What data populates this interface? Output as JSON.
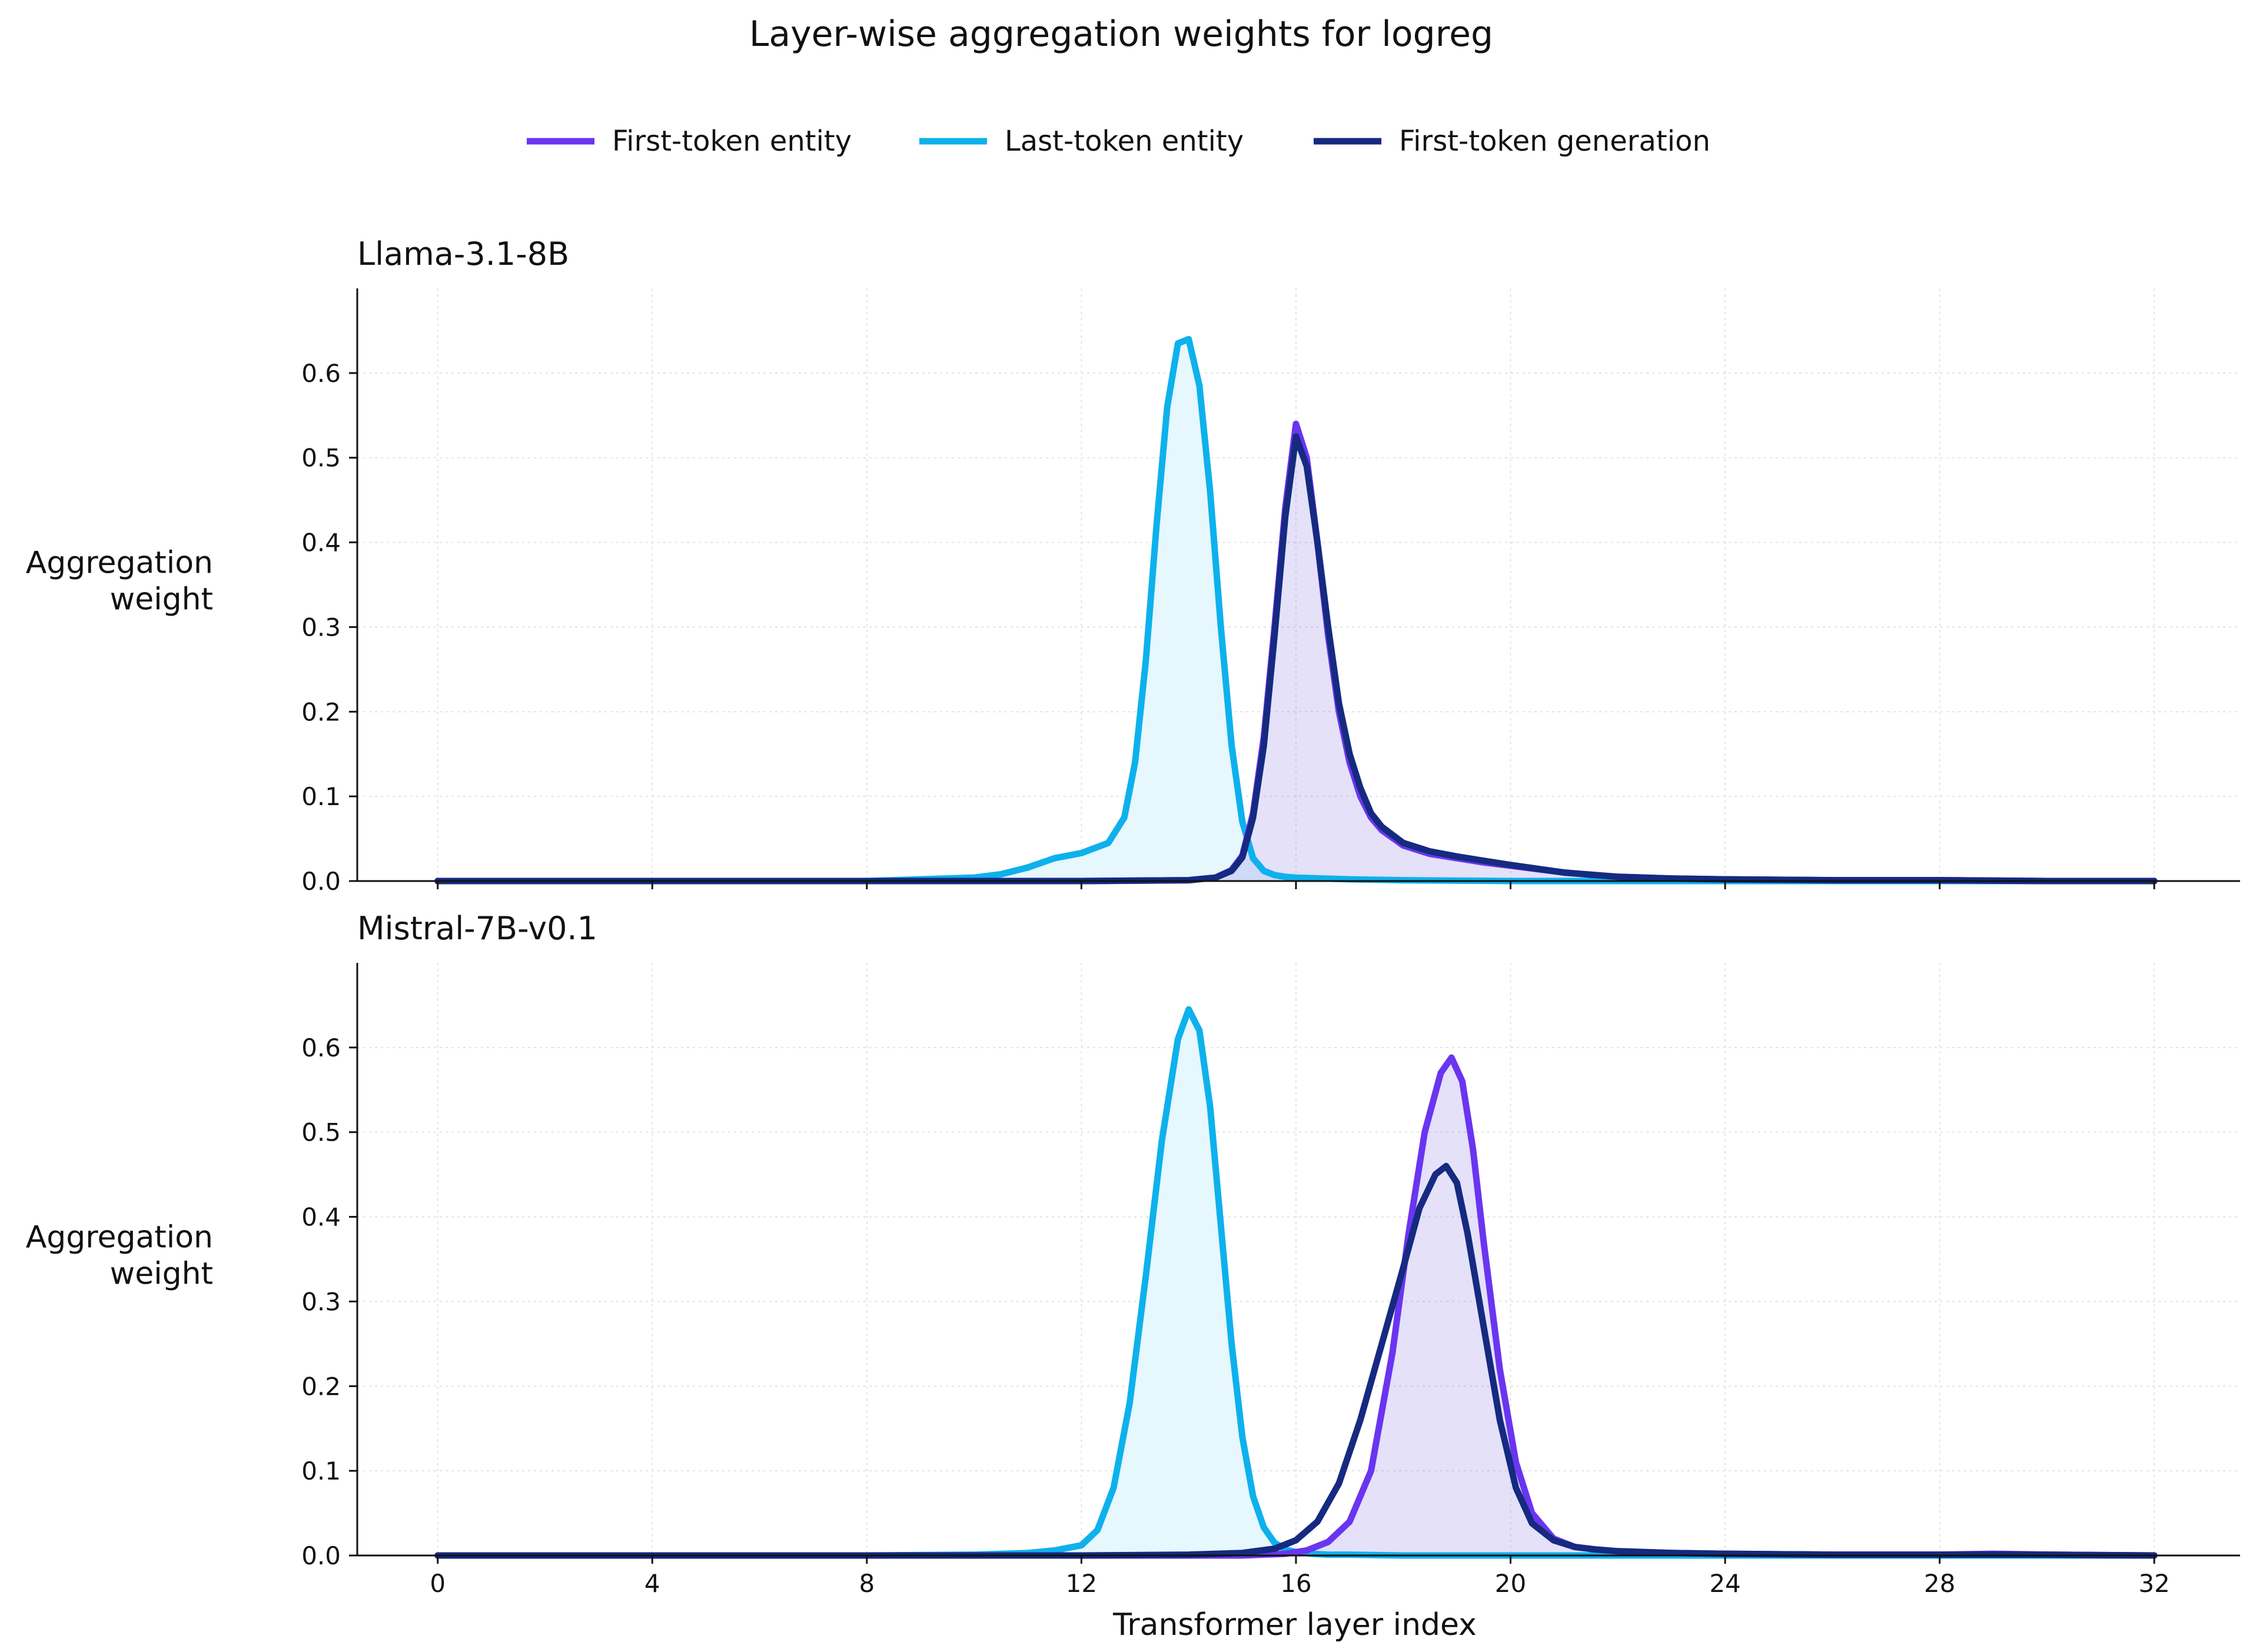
{
  "chart_data": {
    "type": "line",
    "title": "Layer-wise aggregation weights for logreg",
    "xlabel": "Transformer layer index",
    "ylabel": "Aggregation weight",
    "xlim": [
      -1.5,
      33.6
    ],
    "ylim": [
      0,
      0.7
    ],
    "xticks": [
      0,
      4,
      8,
      12,
      16,
      20,
      24,
      28,
      32
    ],
    "yticks": [
      0.0,
      0.1,
      0.2,
      0.3,
      0.4,
      0.5,
      0.6
    ],
    "ytick_labels": [
      "0.0",
      "0.1",
      "0.2",
      "0.3",
      "0.4",
      "0.5",
      "0.6"
    ],
    "grid": true,
    "legend": {
      "placement": "top-center",
      "entries": [
        {
          "name": "First-token entity",
          "color": "#6a35f0"
        },
        {
          "name": "Last-token entity",
          "color": "#0eb1ec"
        },
        {
          "name": "First-token generation",
          "color": "#152a80"
        }
      ]
    },
    "panels": [
      {
        "title": "Llama-3.1-8B",
        "series": [
          {
            "name": "Last-token entity",
            "color": "#0eb1ec",
            "fill": true,
            "x": [
              0,
              4,
              8,
              10,
              10.5,
              11,
              11.5,
              12,
              12.5,
              12.8,
              13,
              13.2,
              13.4,
              13.6,
              13.8,
              14,
              14.2,
              14.4,
              14.6,
              14.8,
              15,
              15.2,
              15.4,
              15.6,
              15.8,
              16,
              16.5,
              17,
              18,
              20,
              24,
              28,
              32
            ],
            "y": [
              0,
              0,
              0,
              0.004,
              0.008,
              0.016,
              0.027,
              0.033,
              0.045,
              0.075,
              0.14,
              0.26,
              0.42,
              0.56,
              0.635,
              0.64,
              0.585,
              0.46,
              0.3,
              0.16,
              0.07,
              0.027,
              0.012,
              0.007,
              0.005,
              0.004,
              0.003,
              0.002,
              0.001,
              0,
              0,
              0,
              0
            ]
          },
          {
            "name": "First-token entity",
            "color": "#6a35f0",
            "fill": true,
            "x": [
              0,
              8,
              12,
              14,
              14.5,
              14.8,
              15,
              15.2,
              15.4,
              15.6,
              15.8,
              16,
              16.2,
              16.4,
              16.6,
              16.8,
              17,
              17.2,
              17.4,
              17.6,
              18,
              18.5,
              19,
              19.5,
              20,
              21,
              22,
              23,
              24,
              26,
              28,
              30,
              32
            ],
            "y": [
              0,
              0,
              0,
              0.001,
              0.004,
              0.013,
              0.03,
              0.08,
              0.17,
              0.3,
              0.44,
              0.54,
              0.5,
              0.4,
              0.29,
              0.2,
              0.14,
              0.1,
              0.075,
              0.06,
              0.042,
              0.032,
              0.027,
              0.022,
              0.018,
              0.01,
              0.005,
              0.003,
              0.002,
              0.001,
              0.001,
              0,
              0
            ]
          },
          {
            "name": "First-token generation",
            "color": "#152a80",
            "fill": false,
            "x": [
              0,
              8,
              12,
              14,
              14.5,
              14.8,
              15,
              15.2,
              15.4,
              15.6,
              15.8,
              16,
              16.2,
              16.4,
              16.6,
              16.8,
              17,
              17.2,
              17.4,
              17.6,
              18,
              18.5,
              19,
              19.5,
              20,
              21,
              22,
              23,
              24,
              26,
              28,
              30,
              32
            ],
            "y": [
              0,
              0,
              0,
              0.001,
              0.004,
              0.012,
              0.028,
              0.075,
              0.16,
              0.29,
              0.43,
              0.525,
              0.49,
              0.4,
              0.3,
              0.21,
              0.15,
              0.11,
              0.08,
              0.064,
              0.045,
              0.035,
              0.029,
              0.024,
              0.019,
              0.01,
              0.005,
              0.003,
              0.002,
              0.001,
              0.001,
              0,
              0
            ]
          }
        ]
      },
      {
        "title": "Mistral-7B-v0.1",
        "series": [
          {
            "name": "Last-token entity",
            "color": "#0eb1ec",
            "fill": true,
            "x": [
              0,
              4,
              8,
              10,
              11,
              11.5,
              12,
              12.3,
              12.6,
              12.9,
              13.2,
              13.5,
              13.8,
              14,
              14.2,
              14.4,
              14.6,
              14.8,
              15,
              15.2,
              15.4,
              15.6,
              15.8,
              16,
              16.3,
              16.6,
              17,
              18,
              20,
              24,
              28,
              32
            ],
            "y": [
              0,
              0,
              0,
              0.001,
              0.003,
              0.006,
              0.012,
              0.03,
              0.08,
              0.18,
              0.33,
              0.49,
              0.61,
              0.645,
              0.62,
              0.53,
              0.39,
              0.25,
              0.14,
              0.07,
              0.033,
              0.015,
              0.007,
              0.004,
              0.002,
              0.001,
              0.001,
              0,
              0,
              0,
              0,
              0
            ]
          },
          {
            "name": "First-token entity",
            "color": "#6a35f0",
            "fill": true,
            "x": [
              0,
              8,
              12,
              15,
              15.8,
              16.2,
              16.6,
              17,
              17.4,
              17.8,
              18.1,
              18.4,
              18.7,
              18.9,
              19.1,
              19.3,
              19.5,
              19.8,
              20.1,
              20.4,
              20.8,
              21.2,
              21.6,
              22,
              23,
              24,
              26,
              28,
              29,
              30,
              32
            ],
            "y": [
              0,
              0,
              0,
              0,
              0.002,
              0.006,
              0.016,
              0.04,
              0.1,
              0.24,
              0.38,
              0.5,
              0.57,
              0.588,
              0.56,
              0.48,
              0.37,
              0.22,
              0.11,
              0.05,
              0.02,
              0.01,
              0.007,
              0.005,
              0.003,
              0.002,
              0.001,
              0.001,
              0.002,
              0.001,
              0
            ]
          },
          {
            "name": "First-token generation",
            "color": "#152a80",
            "fill": false,
            "x": [
              0,
              8,
              12,
              14,
              15,
              15.6,
              16,
              16.4,
              16.8,
              17.2,
              17.6,
              18,
              18.3,
              18.6,
              18.8,
              19,
              19.2,
              19.5,
              19.8,
              20.1,
              20.4,
              20.8,
              21.2,
              21.6,
              22,
              23,
              24,
              26,
              28,
              29,
              30,
              32
            ],
            "y": [
              0,
              0,
              0,
              0.001,
              0.003,
              0.008,
              0.018,
              0.04,
              0.085,
              0.16,
              0.25,
              0.34,
              0.41,
              0.45,
              0.46,
              0.44,
              0.38,
              0.27,
              0.16,
              0.08,
              0.038,
              0.018,
              0.01,
              0.007,
              0.005,
              0.003,
              0.002,
              0.001,
              0.001,
              0.001,
              0.001,
              0
            ]
          }
        ]
      }
    ]
  }
}
